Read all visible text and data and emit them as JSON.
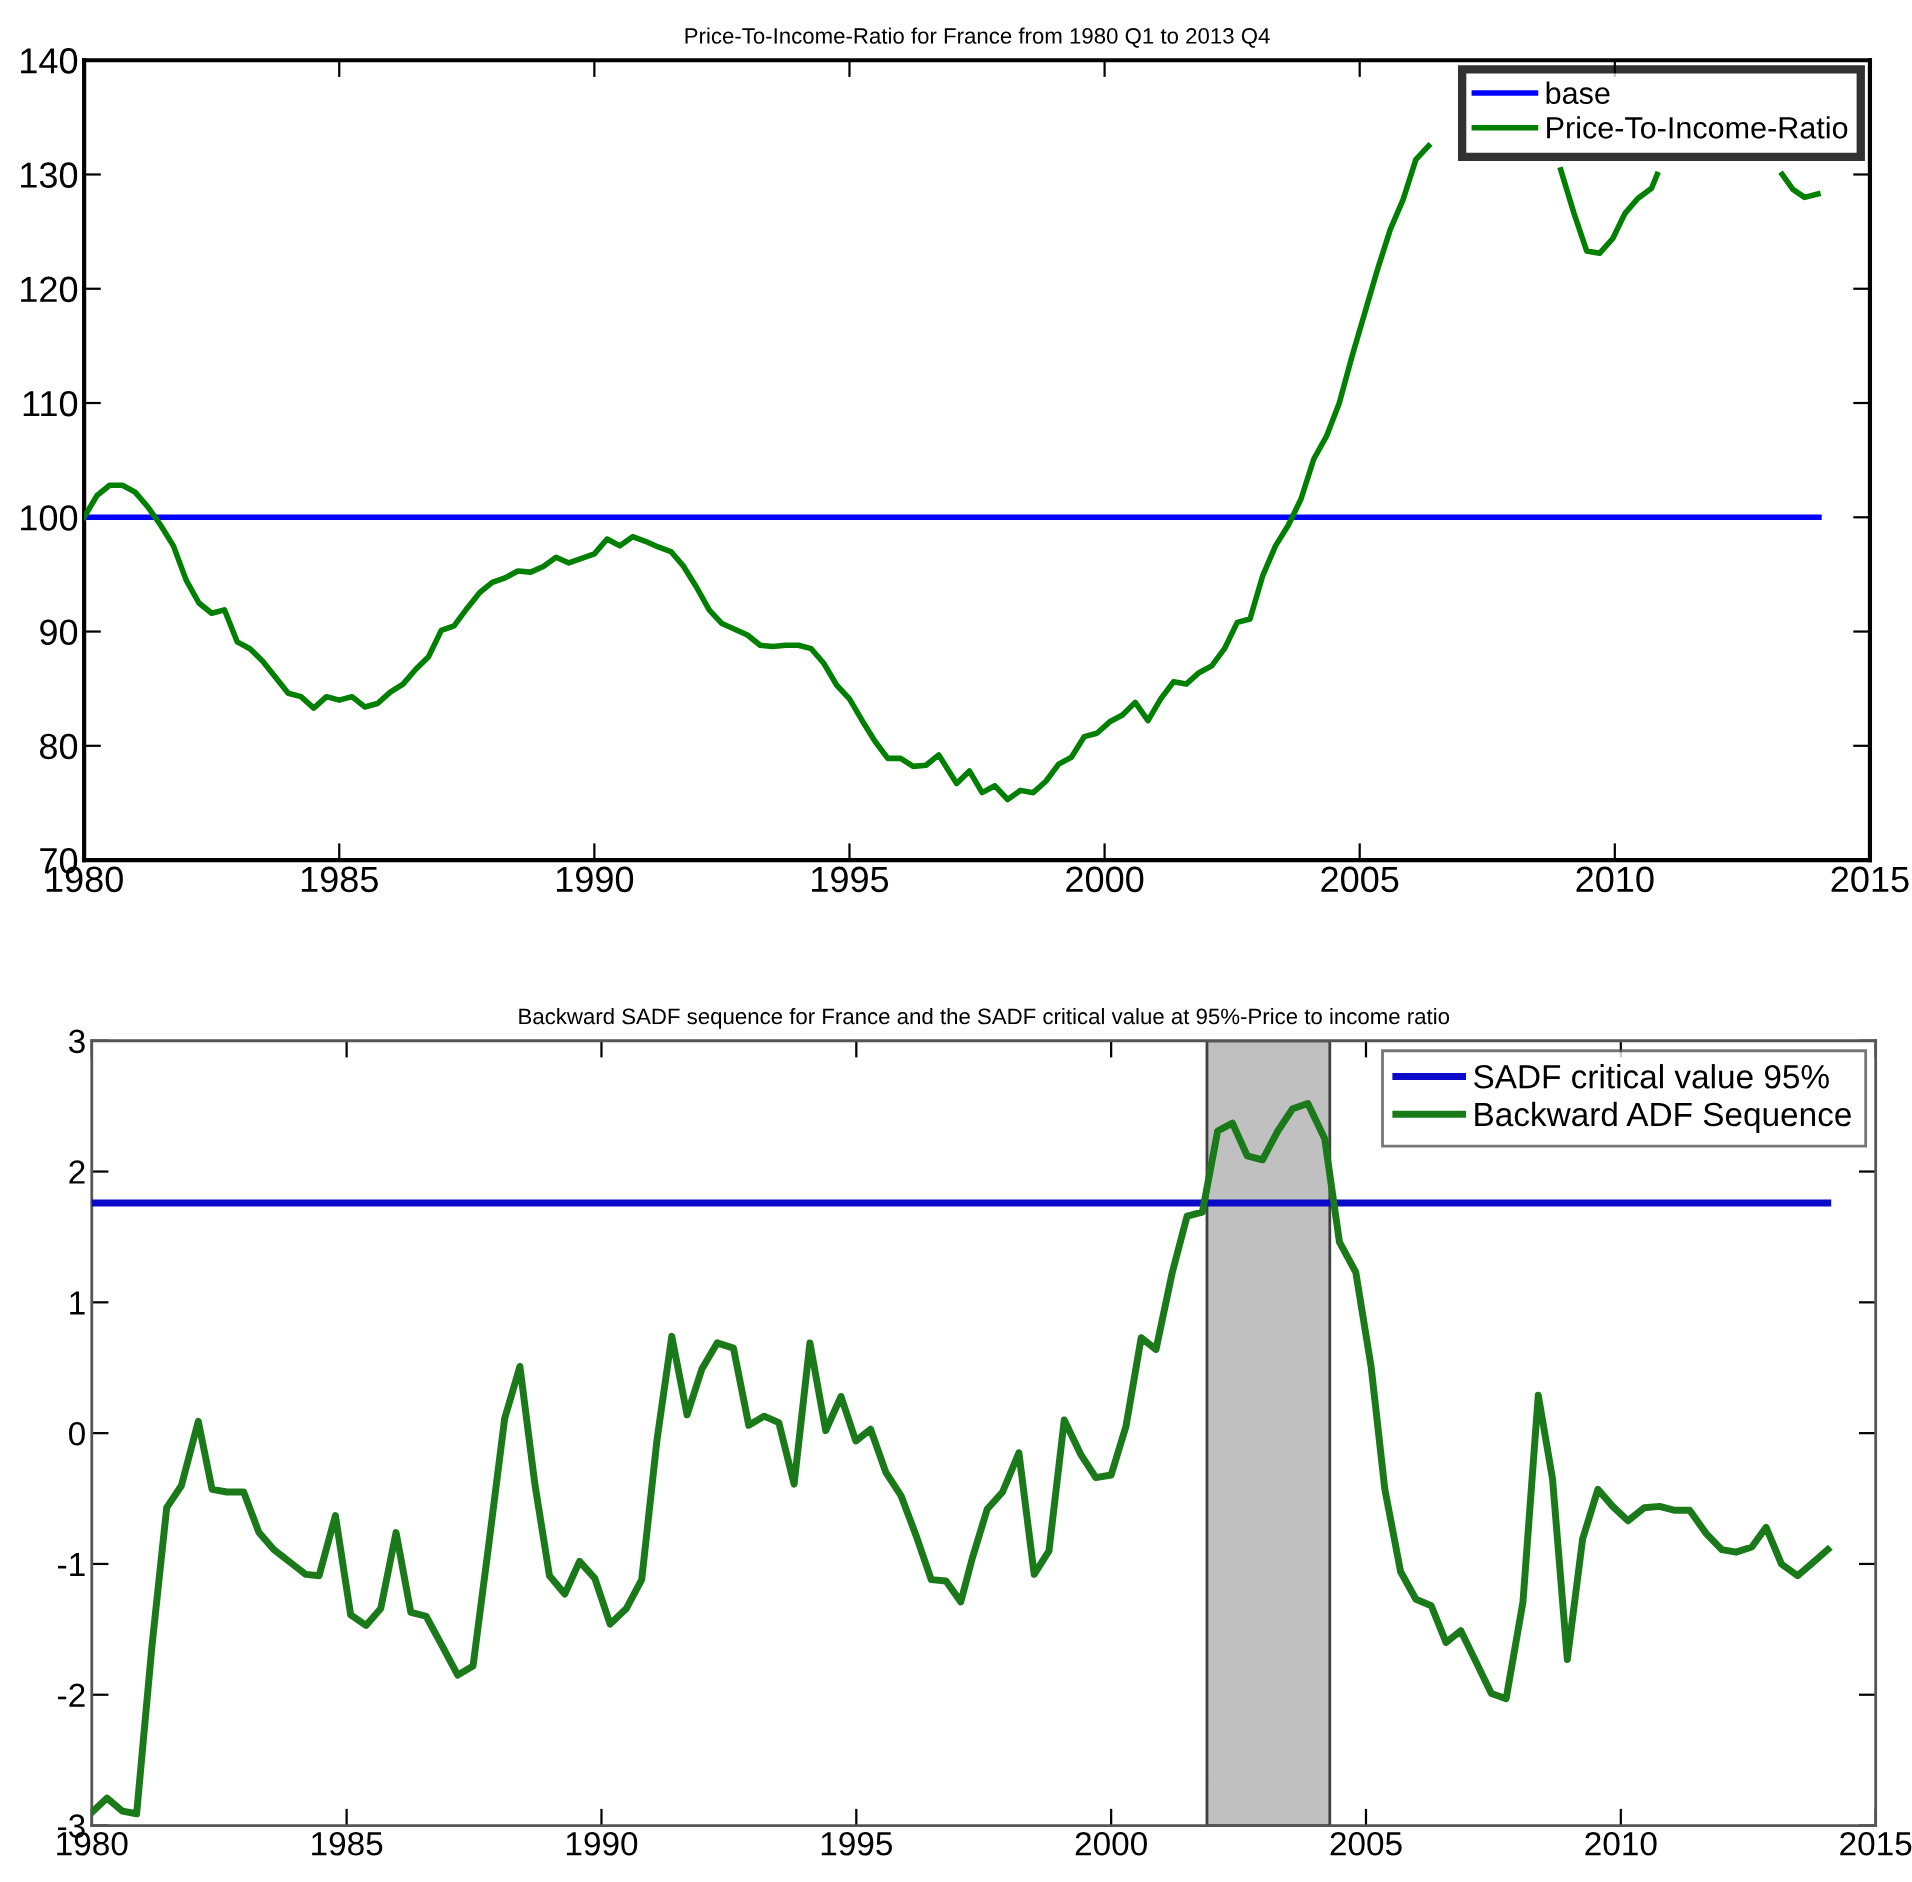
{
  "chart_data": [
    {
      "type": "line",
      "title": "Price-To-Income-Ratio for France from 1980 Q1 to 2013 Q4",
      "xlim": [
        1980,
        2015
      ],
      "ylim": [
        70,
        140
      ],
      "xticks": [
        1980,
        1985,
        1990,
        1995,
        2000,
        2005,
        2010,
        2015
      ],
      "yticks": [
        70,
        80,
        90,
        100,
        110,
        120,
        130,
        140
      ],
      "legend": "top right",
      "series": [
        {
          "name": "base",
          "color": "#0000ff",
          "x": [
            1980,
            2014
          ],
          "values": [
            100,
            100
          ]
        },
        {
          "name": "Price-To-Income-Ratio",
          "color": "#008000",
          "x": [
            1980.0,
            1980.25,
            1980.5,
            1980.75,
            1981.0,
            1981.25,
            1981.5,
            1981.75,
            1982.0,
            1982.25,
            1982.5,
            1982.75,
            1983.0,
            1983.25,
            1983.5,
            1983.75,
            1984.0,
            1984.25,
            1984.5,
            1984.75,
            1985.0,
            1985.25,
            1985.5,
            1985.75,
            1986.0,
            1986.25,
            1986.5,
            1986.75,
            1987.0,
            1987.25,
            1987.5,
            1987.75,
            1988.0,
            1988.25,
            1988.5,
            1988.75,
            1989.0,
            1989.25,
            1989.5,
            1989.75,
            1990.0,
            1990.25,
            1990.5,
            1990.75,
            1991.0,
            1991.25,
            1991.5,
            1991.75,
            1992.0,
            1992.25,
            1992.5,
            1992.75,
            1993.0,
            1993.25,
            1993.5,
            1993.75,
            1994.0,
            1994.25,
            1994.5,
            1994.75,
            1995.0,
            1995.25,
            1995.5,
            1995.75,
            1996.0,
            1996.25,
            1996.5,
            1996.75,
            1997.1,
            1997.35,
            1997.6,
            1997.85,
            1998.1,
            1998.35,
            1998.6,
            1998.85,
            1999.1,
            1999.35,
            1999.6,
            1999.85,
            2000.1,
            2000.35,
            2000.6,
            2000.85,
            2001.1,
            2001.35,
            2001.6,
            2001.85,
            2002.1,
            2002.35,
            2002.6,
            2002.85,
            2003.1,
            2003.35,
            2003.6,
            2003.85,
            2004.1,
            2004.35,
            2004.6,
            2004.85,
            2005.1,
            2005.35,
            2005.6,
            2005.85,
            2006.1,
            2006.35,
            2007.5,
            2008.94,
            2009.2,
            2009.45,
            2009.7,
            2009.96,
            2010.2,
            2010.45,
            2010.72,
            2010.83,
            2012.0,
            2013.28,
            2013.49,
            2013.72,
            2013.98
          ],
          "values": [
            100,
            101.9,
            102.8,
            102.8,
            102.2,
            100.9,
            99.3,
            97.5,
            94.5,
            92.5,
            91.6,
            91.9,
            89.1,
            88.5,
            87.4,
            86.0,
            84.6,
            84.3,
            83.3,
            84.3,
            84.0,
            84.3,
            83.4,
            83.7,
            84.7,
            85.4,
            86.7,
            87.8,
            90.1,
            90.5,
            92.0,
            93.4,
            94.3,
            94.7,
            95.3,
            95.2,
            95.7,
            96.5,
            96.0,
            96.4,
            96.8,
            98.1,
            97.5,
            98.3,
            97.9,
            97.4,
            97.0,
            95.7,
            93.9,
            91.9,
            90.7,
            90.2,
            89.7,
            88.8,
            88.7,
            88.8,
            88.8,
            88.5,
            87.2,
            85.3,
            84.1,
            82.2,
            80.4,
            78.9,
            78.9,
            78.2,
            78.3,
            79.2,
            76.7,
            77.8,
            75.9,
            76.5,
            75.3,
            76.1,
            75.9,
            76.9,
            78.4,
            79.0,
            80.8,
            81.1,
            82.1,
            82.7,
            83.8,
            82.2,
            84.1,
            85.6,
            85.4,
            86.4,
            87.0,
            88.5,
            90.8,
            91.1,
            94.9,
            97.5,
            99.3,
            101.6,
            105.1,
            107.1,
            110.0,
            114.1,
            117.9,
            121.7,
            125.2,
            127.8,
            131.3,
            132.5,
            null,
            130.4,
            126.6,
            123.3,
            123.1,
            124.4,
            126.6,
            127.9,
            128.8,
            130.0,
            null,
            130.0,
            128.7,
            128.0,
            128.3
          ]
        }
      ]
    },
    {
      "type": "line",
      "title": "Backward SADF sequence for France and the SADF critical value at 95%-Price to income ratio",
      "xlim": [
        1980,
        2015
      ],
      "ylim": [
        -3,
        3
      ],
      "xticks": [
        1980,
        1985,
        1990,
        1995,
        2000,
        2005,
        2010,
        2015
      ],
      "yticks": [
        {
          "value": -3,
          "label": "-3"
        },
        {
          "value": -2,
          "label": "-2"
        },
        {
          "value": -1,
          "label": "-1"
        },
        0,
        1,
        2,
        3
      ],
      "legend": "top right",
      "bands": [
        {
          "axis": "x",
          "from": 2001.88,
          "to": 2004.29,
          "color": "#c0c0c0"
        }
      ],
      "series": [
        {
          "name": "SADF critical value 95%",
          "color": "#0a0ac8",
          "x": [
            1980,
            2014.06
          ],
          "values": [
            1.76,
            1.76
          ]
        },
        {
          "name": "Backward ADF Sequence",
          "color": "#1a7a1a",
          "x": [
            1980.0,
            1980.3,
            1980.6,
            1980.88,
            1981.18,
            1981.47,
            1981.76,
            1982.09,
            1982.36,
            1982.65,
            1982.98,
            1983.28,
            1983.57,
            1983.9,
            1984.2,
            1984.46,
            1984.78,
            1985.08,
            1985.38,
            1985.67,
            1985.97,
            1986.26,
            1986.56,
            1986.88,
            1987.18,
            1987.48,
            1987.77,
            1988.1,
            1988.4,
            1988.69,
            1988.98,
            1989.28,
            1989.57,
            1989.87,
            1990.17,
            1990.49,
            1990.79,
            1991.09,
            1991.38,
            1991.68,
            1991.97,
            1992.27,
            1992.59,
            1992.89,
            1993.19,
            1993.48,
            1993.78,
            1994.09,
            1994.4,
            1994.7,
            1994.99,
            1995.28,
            1995.58,
            1995.88,
            1996.17,
            1996.47,
            1996.76,
            1997.05,
            1997.28,
            1997.57,
            1997.87,
            1998.19,
            1998.49,
            1998.78,
            1999.08,
            1999.4,
            1999.7,
            2000.0,
            2000.29,
            2000.59,
            2000.88,
            2001.2,
            2001.49,
            2001.79,
            2002.09,
            2002.38,
            2002.67,
            2002.97,
            2003.27,
            2003.56,
            2003.86,
            2004.19,
            2004.48,
            2004.8,
            2005.1,
            2005.37,
            2005.68,
            2005.98,
            2006.28,
            2006.57,
            2006.86,
            2007.16,
            2007.46,
            2007.75,
            2008.08,
            2008.38,
            2008.66,
            2008.95,
            2009.25,
            2009.55,
            2009.84,
            2010.14,
            2010.46,
            2010.76,
            2011.06,
            2011.35,
            2011.68,
            2011.98,
            2012.26,
            2012.57,
            2012.85,
            2013.15,
            2013.47,
            2013.74,
            2014.06
          ],
          "values": [
            -2.9,
            -2.79,
            -2.89,
            -2.91,
            -1.63,
            -0.57,
            -0.4,
            0.09,
            -0.43,
            -0.45,
            -0.45,
            -0.76,
            -0.89,
            -0.99,
            -1.08,
            -1.09,
            -0.63,
            -1.39,
            -1.47,
            -1.34,
            -0.76,
            -1.37,
            -1.4,
            -1.63,
            -1.85,
            -1.78,
            -0.91,
            0.11,
            0.51,
            -0.38,
            -1.09,
            -1.23,
            -0.98,
            -1.11,
            -1.46,
            -1.34,
            -1.12,
            -0.05,
            0.74,
            0.14,
            0.49,
            0.69,
            0.65,
            0.06,
            0.13,
            0.08,
            -0.39,
            0.69,
            0.02,
            0.28,
            -0.06,
            0.03,
            -0.3,
            -0.48,
            -0.78,
            -1.12,
            -1.13,
            -1.29,
            -0.95,
            -0.58,
            -0.45,
            -0.15,
            -1.08,
            -0.9,
            0.1,
            -0.16,
            -0.34,
            -0.32,
            0.05,
            0.73,
            0.64,
            1.23,
            1.66,
            1.69,
            2.31,
            2.37,
            2.12,
            2.09,
            2.31,
            2.48,
            2.52,
            2.25,
            1.46,
            1.23,
            0.51,
            -0.43,
            -1.06,
            -1.27,
            -1.32,
            -1.6,
            -1.51,
            -1.75,
            -1.99,
            -2.03,
            -1.29,
            0.29,
            -0.35,
            -1.73,
            -0.81,
            -0.43,
            -0.56,
            -0.67,
            -0.57,
            -0.56,
            -0.59,
            -0.59,
            -0.77,
            -0.89,
            -0.91,
            -0.87,
            -0.72,
            -1.0,
            -1.09,
            -1.0,
            -0.89
          ]
        }
      ]
    }
  ]
}
